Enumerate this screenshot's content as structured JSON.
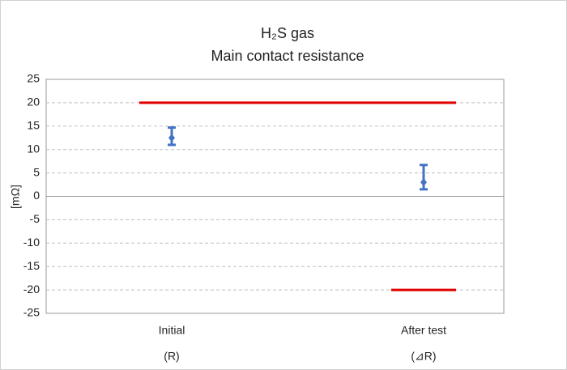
{
  "chart_data": {
    "type": "error_bar",
    "title": [
      "H₂S gas",
      "Main contact resistance"
    ],
    "y_label": "[mΩ]",
    "categories": [
      "Initial",
      "After test"
    ],
    "sub_categories": [
      "(R)",
      "(⊿R)"
    ],
    "series": [
      {
        "color": "#4472c4",
        "values": [
          12.5,
          3
        ],
        "min": [
          11,
          1.5
        ],
        "max": [
          14.7,
          6.7
        ]
      }
    ],
    "limits": [
      {
        "color": "#e00000",
        "values": [
          20,
          20
        ]
      },
      {
        "color": "#e00000",
        "values": [
          null,
          -20
        ]
      }
    ],
    "ylim": [
      -25,
      25
    ],
    "yticks": [
      -25,
      -20,
      -15,
      -10,
      -5,
      0,
      5,
      10,
      15,
      20,
      25
    ],
    "grid": true
  }
}
